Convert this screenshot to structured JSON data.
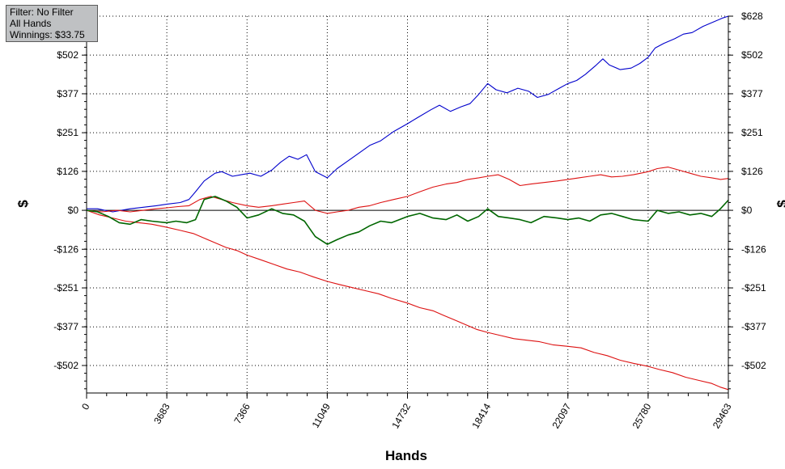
{
  "info_box": {
    "filter": "Filter: No Filter",
    "hands": "All Hands",
    "winnings": "Winnings: $33.75"
  },
  "chart_data": {
    "type": "line",
    "xlabel": "Hands",
    "ylabel": "$",
    "ylabel_right": "$",
    "xlim": [
      0,
      29463
    ],
    "ylim": [
      -580,
      628
    ],
    "x_ticks": [
      0,
      3683,
      7366,
      11049,
      14732,
      18414,
      22097,
      25780,
      29463
    ],
    "x_tick_labels": [
      "0",
      "3683",
      "7366",
      "11049",
      "14732",
      "18414",
      "22097",
      "25780",
      "29463"
    ],
    "y_ticks": [
      628,
      502,
      377,
      251,
      126,
      0,
      -126,
      -251,
      -377,
      -502
    ],
    "y_tick_labels": [
      "$628",
      "$502",
      "$377",
      "$251",
      "$126",
      "$0",
      "-$126",
      "-$251",
      "-$377",
      "-$502"
    ],
    "grid": true,
    "colors": {
      "frame": "#000000",
      "grid": "#000000"
    },
    "series": [
      {
        "color": "#0000cc",
        "x": [
          0,
          500,
          1200,
          1600,
          2000,
          2600,
          3200,
          3700,
          4300,
          4700,
          5000,
          5400,
          5900,
          6200,
          6700,
          7100,
          7500,
          8000,
          8500,
          8900,
          9300,
          9700,
          10100,
          10500,
          11049,
          11500,
          12000,
          12500,
          13000,
          13500,
          14100,
          14732,
          15200,
          15800,
          16200,
          16700,
          17200,
          17600,
          18000,
          18414,
          18800,
          19300,
          19800,
          20300,
          20700,
          21200,
          21700,
          22097,
          22500,
          22900,
          23400,
          23700,
          24000,
          24500,
          25000,
          25400,
          25780,
          26100,
          26500,
          27000,
          27400,
          27800,
          28300,
          28800,
          29200,
          29463
        ],
        "y": [
          5,
          5,
          -5,
          0,
          5,
          10,
          15,
          20,
          25,
          35,
          60,
          95,
          120,
          125,
          110,
          115,
          120,
          110,
          130,
          155,
          175,
          165,
          180,
          125,
          105,
          135,
          160,
          185,
          210,
          225,
          255,
          280,
          300,
          325,
          340,
          320,
          335,
          345,
          375,
          410,
          390,
          380,
          395,
          385,
          365,
          375,
          395,
          410,
          420,
          440,
          470,
          490,
          470,
          455,
          460,
          475,
          495,
          525,
          540,
          555,
          570,
          575,
          595,
          610,
          622,
          628
        ]
      },
      {
        "color": "#dd1111",
        "x": [
          0,
          600,
          1200,
          1800,
          2400,
          3000,
          3683,
          4300,
          4900,
          5400,
          5900,
          6400,
          6900,
          7366,
          8000,
          8600,
          9200,
          9800,
          10400,
          11049,
          11600,
          12200,
          12800,
          13400,
          14000,
          14732,
          15300,
          15900,
          16400,
          16900,
          17400,
          17900,
          18414,
          19000,
          19600,
          20200,
          20800,
          21400,
          22097,
          22700,
          23300,
          23900,
          24500,
          25100,
          25780,
          26300,
          26900,
          27500,
          28100,
          28700,
          29100,
          29463
        ],
        "y": [
          0,
          -15,
          -25,
          -35,
          -40,
          -45,
          -55,
          -65,
          -75,
          -90,
          -105,
          -120,
          -130,
          -145,
          -160,
          -175,
          -190,
          -200,
          -215,
          -230,
          -240,
          -250,
          -260,
          -270,
          -285,
          -300,
          -315,
          -325,
          -340,
          -355,
          -370,
          -385,
          -395,
          -405,
          -415,
          -420,
          -425,
          -435,
          -440,
          -445,
          -460,
          -470,
          -485,
          -495,
          -505,
          -515,
          -525,
          -540,
          -550,
          -560,
          -572,
          -580
        ]
      },
      {
        "color": "#dd1111",
        "x": [
          0,
          700,
          1400,
          2000,
          2600,
          3200,
          3683,
          4200,
          4700,
          5200,
          5700,
          6200,
          6700,
          7366,
          7900,
          8500,
          9000,
          9500,
          10000,
          10500,
          11049,
          11500,
          12000,
          12500,
          13000,
          13500,
          14100,
          14732,
          15300,
          15900,
          16500,
          17000,
          17500,
          18000,
          18414,
          18900,
          19400,
          19900,
          20400,
          21000,
          21600,
          22097,
          22600,
          23100,
          23600,
          24100,
          24600,
          25100,
          25780,
          26200,
          26700,
          27200,
          27700,
          28200,
          28700,
          29100,
          29463
        ],
        "y": [
          0,
          -5,
          0,
          -5,
          0,
          5,
          8,
          12,
          15,
          35,
          45,
          35,
          25,
          15,
          10,
          15,
          20,
          25,
          30,
          0,
          -10,
          -5,
          0,
          10,
          15,
          25,
          35,
          45,
          60,
          75,
          85,
          90,
          100,
          105,
          110,
          115,
          100,
          80,
          85,
          90,
          95,
          100,
          105,
          110,
          115,
          108,
          110,
          115,
          125,
          135,
          140,
          130,
          120,
          110,
          105,
          100,
          103
        ]
      },
      {
        "color": "#006600",
        "x": [
          0,
          500,
          1000,
          1500,
          2000,
          2500,
          3000,
          3683,
          4100,
          4600,
          5000,
          5400,
          5900,
          6400,
          6900,
          7366,
          7900,
          8500,
          9000,
          9500,
          10000,
          10500,
          11049,
          11500,
          12000,
          12500,
          13000,
          13500,
          14000,
          14732,
          15300,
          15900,
          16500,
          17000,
          17500,
          18000,
          18414,
          18900,
          19400,
          19900,
          20400,
          21000,
          21600,
          22097,
          22600,
          23100,
          23600,
          24100,
          24600,
          25100,
          25780,
          26200,
          26700,
          27200,
          27700,
          28200,
          28700,
          29100,
          29463
        ],
        "y": [
          0,
          -5,
          -20,
          -40,
          -45,
          -30,
          -35,
          -40,
          -35,
          -40,
          -30,
          35,
          45,
          30,
          10,
          -25,
          -15,
          5,
          -10,
          -15,
          -35,
          -85,
          -110,
          -95,
          -80,
          -70,
          -50,
          -35,
          -40,
          -20,
          -10,
          -25,
          -30,
          -15,
          -35,
          -20,
          5,
          -20,
          -25,
          -30,
          -40,
          -20,
          -25,
          -30,
          -25,
          -35,
          -15,
          -10,
          -20,
          -30,
          -35,
          0,
          -10,
          -5,
          -15,
          -10,
          -20,
          5,
          33
        ]
      }
    ]
  }
}
